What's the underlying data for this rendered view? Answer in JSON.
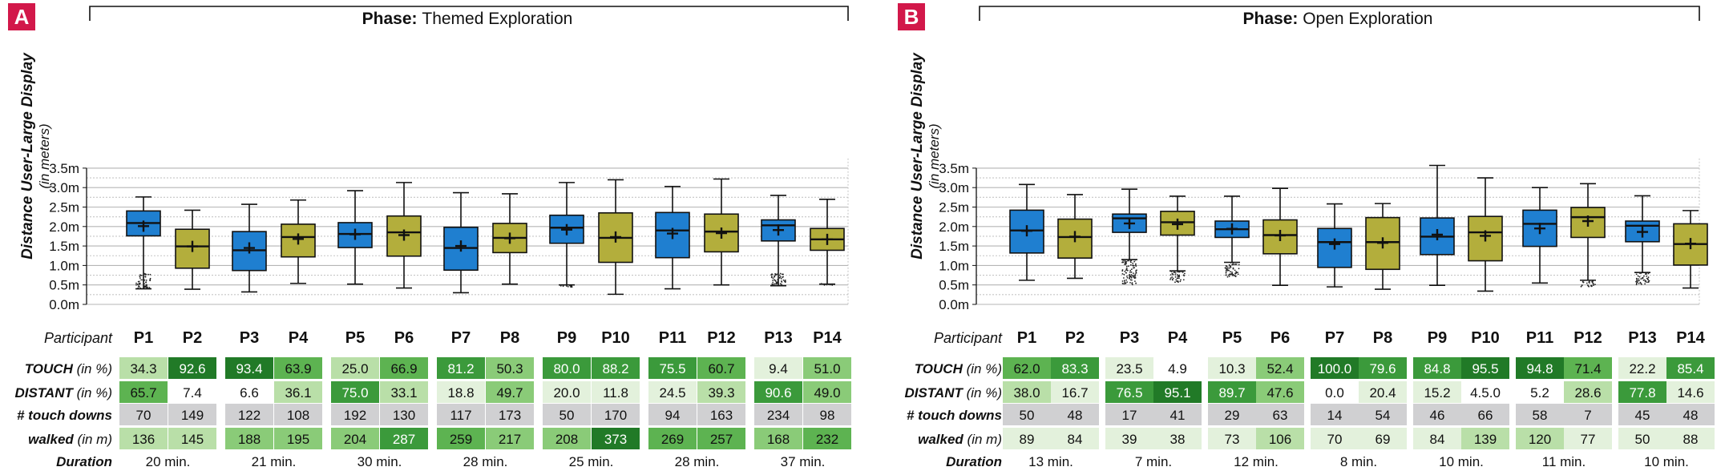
{
  "colors": {
    "blue": "#1f7fd0",
    "olive": "#b3ae3c",
    "badge": "#d2184a",
    "green_scale": [
      "#ffffff",
      "#e3f1dc",
      "#b9dfa8",
      "#8acb78",
      "#5db351",
      "#3b9a3b",
      "#217a27"
    ],
    "gray_cell": "#d0d0d2"
  },
  "labels": {
    "participant": "Participant",
    "ylabel": "Distance User-Large Display",
    "ylabel_unit": "(in meters)",
    "phase_prefix": "Phase:",
    "rows": [
      {
        "key": "touch",
        "bold": "TOUCH",
        "unit": " (in %)"
      },
      {
        "key": "distant",
        "bold": "DISTANT",
        "unit": " (in %)"
      },
      {
        "key": "touchdowns",
        "bold": "# touch downs",
        "unit": ""
      },
      {
        "key": "walked",
        "bold": "walked",
        "unit": " (in m)"
      },
      {
        "key": "duration",
        "bold": "Duration",
        "unit": ""
      }
    ]
  },
  "chart_data": [
    {
      "type": "box",
      "badge": "A",
      "phase": "Themed Exploration",
      "ylim": [
        0,
        3.5
      ],
      "yticks": [
        "0.0m",
        "0.5m",
        "1.0m",
        "1.5m",
        "2.0m",
        "2.5m",
        "3.0m",
        "3.5m"
      ],
      "participants": [
        "P1",
        "P2",
        "P3",
        "P4",
        "P5",
        "P6",
        "P7",
        "P8",
        "P9",
        "P10",
        "P11",
        "P12",
        "P13",
        "P14"
      ],
      "boxes": [
        {
          "min": 0.4,
          "q1": 1.76,
          "median": 2.09,
          "q3": 2.4,
          "max": 2.76,
          "mean": 2.01,
          "out": [
            0.4,
            0.8
          ]
        },
        {
          "min": 0.39,
          "q1": 0.93,
          "median": 1.49,
          "q3": 1.93,
          "max": 2.42,
          "mean": 1.49,
          "out": null
        },
        {
          "min": 0.32,
          "q1": 0.87,
          "median": 1.39,
          "q3": 1.87,
          "max": 2.57,
          "mean": 1.45,
          "out": null
        },
        {
          "min": 0.54,
          "q1": 1.22,
          "median": 1.73,
          "q3": 2.06,
          "max": 2.68,
          "mean": 1.68,
          "out": null
        },
        {
          "min": 0.52,
          "q1": 1.46,
          "median": 1.81,
          "q3": 2.1,
          "max": 2.92,
          "mean": 1.8,
          "out": null
        },
        {
          "min": 0.42,
          "q1": 1.24,
          "median": 1.85,
          "q3": 2.27,
          "max": 3.13,
          "mean": 1.78,
          "out": null
        },
        {
          "min": 0.3,
          "q1": 0.88,
          "median": 1.45,
          "q3": 1.98,
          "max": 2.87,
          "mean": 1.5,
          "out": null
        },
        {
          "min": 0.52,
          "q1": 1.33,
          "median": 1.71,
          "q3": 2.08,
          "max": 2.84,
          "mean": 1.7,
          "out": null
        },
        {
          "min": 0.5,
          "q1": 1.57,
          "median": 1.97,
          "q3": 2.29,
          "max": 3.13,
          "mean": 1.92,
          "out": [
            0.43,
            0.5
          ]
        },
        {
          "min": 0.26,
          "q1": 1.08,
          "median": 1.71,
          "q3": 2.35,
          "max": 3.2,
          "mean": 1.73,
          "out": null
        },
        {
          "min": 0.4,
          "q1": 1.2,
          "median": 1.9,
          "q3": 2.36,
          "max": 3.03,
          "mean": 1.82,
          "out": null
        },
        {
          "min": 0.5,
          "q1": 1.35,
          "median": 1.87,
          "q3": 2.32,
          "max": 3.22,
          "mean": 1.83,
          "out": null
        },
        {
          "min": 0.48,
          "q1": 1.63,
          "median": 2.03,
          "q3": 2.17,
          "max": 2.8,
          "mean": 1.91,
          "out": [
            0.48,
            0.8
          ]
        },
        {
          "min": 0.52,
          "q1": 1.39,
          "median": 1.67,
          "q3": 1.95,
          "max": 2.7,
          "mean": 1.67,
          "out": [
            0.49,
            0.54
          ]
        }
      ],
      "table": {
        "touch": [
          "34.3",
          "92.6",
          "93.4",
          "63.9",
          "25.0",
          "66.9",
          "81.2",
          "50.3",
          "80.0",
          "88.2",
          "75.5",
          "60.7",
          "9.4",
          "51.0"
        ],
        "distant": [
          "65.7",
          "7.4",
          "6.6",
          "36.1",
          "75.0",
          "33.1",
          "18.8",
          "49.7",
          "20.0",
          "11.8",
          "24.5",
          "39.3",
          "90.6",
          "49.0"
        ],
        "touchdowns": [
          "70",
          "149",
          "122",
          "108",
          "192",
          "130",
          "117",
          "173",
          "50",
          "170",
          "94",
          "163",
          "234",
          "98"
        ],
        "walked": [
          "136",
          "145",
          "188",
          "195",
          "204",
          "287",
          "259",
          "217",
          "208",
          "373",
          "269",
          "257",
          "168",
          "232"
        ],
        "duration": [
          "20 min.",
          "21 min.",
          "30 min.",
          "28 min.",
          "25 min.",
          "28 min.",
          "37 min."
        ]
      }
    },
    {
      "type": "box",
      "badge": "B",
      "phase": "Open Exploration",
      "ylim": [
        0,
        3.5
      ],
      "yticks": [
        "0.0m",
        "0.5m",
        "1.0m",
        "1.5m",
        "2.0m",
        "2.5m",
        "3.0m",
        "3.5m"
      ],
      "participants": [
        "P1",
        "P2",
        "P3",
        "P4",
        "P5",
        "P6",
        "P7",
        "P8",
        "P9",
        "P10",
        "P11",
        "P12",
        "P13",
        "P14"
      ],
      "boxes": [
        {
          "min": 0.62,
          "q1": 1.32,
          "median": 1.9,
          "q3": 2.42,
          "max": 3.08,
          "mean": 1.89,
          "out": null
        },
        {
          "min": 0.67,
          "q1": 1.19,
          "median": 1.73,
          "q3": 2.19,
          "max": 2.82,
          "mean": 1.74,
          "out": null
        },
        {
          "min": 1.15,
          "q1": 1.85,
          "median": 2.21,
          "q3": 2.32,
          "max": 2.96,
          "mean": 2.08,
          "out": [
            0.5,
            1.15
          ]
        },
        {
          "min": 0.86,
          "q1": 1.78,
          "median": 2.11,
          "q3": 2.39,
          "max": 2.78,
          "mean": 2.06,
          "out": [
            0.55,
            0.86
          ]
        },
        {
          "min": 1.08,
          "q1": 1.72,
          "median": 1.93,
          "q3": 2.14,
          "max": 2.78,
          "mean": 1.94,
          "out": [
            0.7,
            1.08
          ]
        },
        {
          "min": 0.49,
          "q1": 1.3,
          "median": 1.78,
          "q3": 2.17,
          "max": 2.98,
          "mean": 1.77,
          "out": null
        },
        {
          "min": 0.45,
          "q1": 0.95,
          "median": 1.6,
          "q3": 1.95,
          "max": 2.58,
          "mean": 1.55,
          "out": null
        },
        {
          "min": 0.39,
          "q1": 0.9,
          "median": 1.6,
          "q3": 2.23,
          "max": 2.59,
          "mean": 1.58,
          "out": null
        },
        {
          "min": 0.49,
          "q1": 1.28,
          "median": 1.74,
          "q3": 2.22,
          "max": 3.57,
          "mean": 1.79,
          "out": null
        },
        {
          "min": 0.34,
          "q1": 1.12,
          "median": 1.85,
          "q3": 2.26,
          "max": 3.25,
          "mean": 1.76,
          "out": null
        },
        {
          "min": 0.55,
          "q1": 1.49,
          "median": 2.07,
          "q3": 2.42,
          "max": 3.0,
          "mean": 1.95,
          "out": null
        },
        {
          "min": 0.62,
          "q1": 1.72,
          "median": 2.24,
          "q3": 2.49,
          "max": 3.1,
          "mean": 2.14,
          "out": [
            0.45,
            0.62
          ]
        },
        {
          "min": 0.82,
          "q1": 1.61,
          "median": 2.02,
          "q3": 2.14,
          "max": 2.79,
          "mean": 1.86,
          "out": [
            0.5,
            0.82
          ]
        },
        {
          "min": 0.42,
          "q1": 1.01,
          "median": 1.55,
          "q3": 2.07,
          "max": 2.41,
          "mean": 1.56,
          "out": null
        }
      ],
      "table": {
        "touch": [
          "62.0",
          "83.3",
          "23.5",
          "4.9",
          "10.3",
          "52.4",
          "100.0",
          "79.6",
          "84.8",
          "95.5",
          "94.8",
          "71.4",
          "22.2",
          "85.4"
        ],
        "distant": [
          "38.0",
          "16.7",
          "76.5",
          "95.1",
          "89.7",
          "47.6",
          "0.0",
          "20.4",
          "15.2",
          "4.5.0",
          "5.2",
          "28.6",
          "77.8",
          "14.6"
        ],
        "touchdowns": [
          "50",
          "48",
          "17",
          "41",
          "29",
          "63",
          "14",
          "54",
          "46",
          "66",
          "58",
          "7",
          "45",
          "48"
        ],
        "walked": [
          "89",
          "84",
          "39",
          "38",
          "73",
          "106",
          "70",
          "69",
          "84",
          "139",
          "120",
          "77",
          "50",
          "88"
        ],
        "duration": [
          "13 min.",
          "7 min.",
          "12 min.",
          "8 min.",
          "10 min.",
          "11 min.",
          "10 min."
        ]
      }
    }
  ]
}
